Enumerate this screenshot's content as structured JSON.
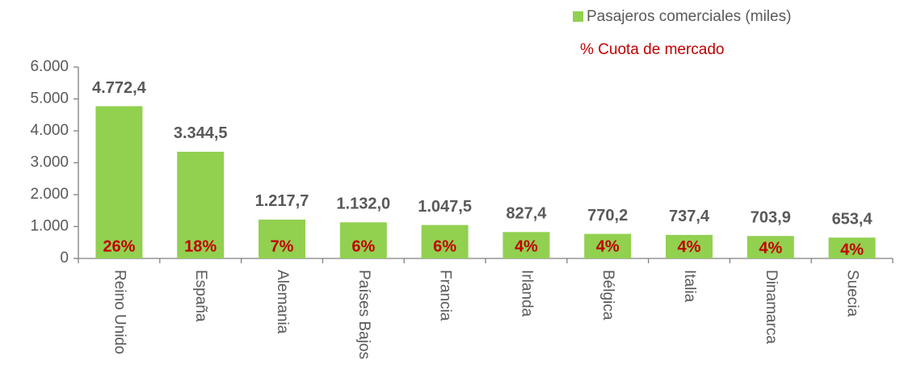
{
  "chart_data": {
    "type": "bar",
    "categories": [
      "Reino Unido",
      "España",
      "Alemania",
      "Países Bajos",
      "Francia",
      "Irlanda",
      "Bélgica",
      "Italia",
      "Dinamarca",
      "Suecia"
    ],
    "series": [
      {
        "name": "Pasajeros comerciales (miles)",
        "color": "#92d050",
        "values": [
          4772.4,
          3344.5,
          1217.7,
          1132.0,
          1047.5,
          827.4,
          770.2,
          737.4,
          703.9,
          653.4
        ],
        "value_labels": [
          "4.772,4",
          "3.344,5",
          "1.217,7",
          "1.132,0",
          "1.047,5",
          "827,4",
          "770,2",
          "737,4",
          "703,9",
          "653,4"
        ]
      }
    ],
    "share": {
      "name": "% Cuota de mercado",
      "color": "#c00000",
      "values": [
        26,
        18,
        7,
        6,
        6,
        4,
        4,
        4,
        4,
        4
      ],
      "value_labels": [
        "26%",
        "18%",
        "7%",
        "6%",
        "6%",
        "4%",
        "4%",
        "4%",
        "4%",
        "4%"
      ]
    },
    "ylim": [
      0,
      6000
    ],
    "yticks": [
      0,
      {
        "value": 1000,
        "label": "1.000"
      },
      {
        "value": 2000,
        "label": "2.000"
      },
      {
        "value": 3000,
        "label": "3.000"
      },
      {
        "value": 4000,
        "label": "4.000"
      },
      {
        "value": 5000,
        "label": "5.000"
      },
      {
        "value": 6000,
        "label": "6.000"
      }
    ],
    "grid": false,
    "legend": "top-right"
  }
}
